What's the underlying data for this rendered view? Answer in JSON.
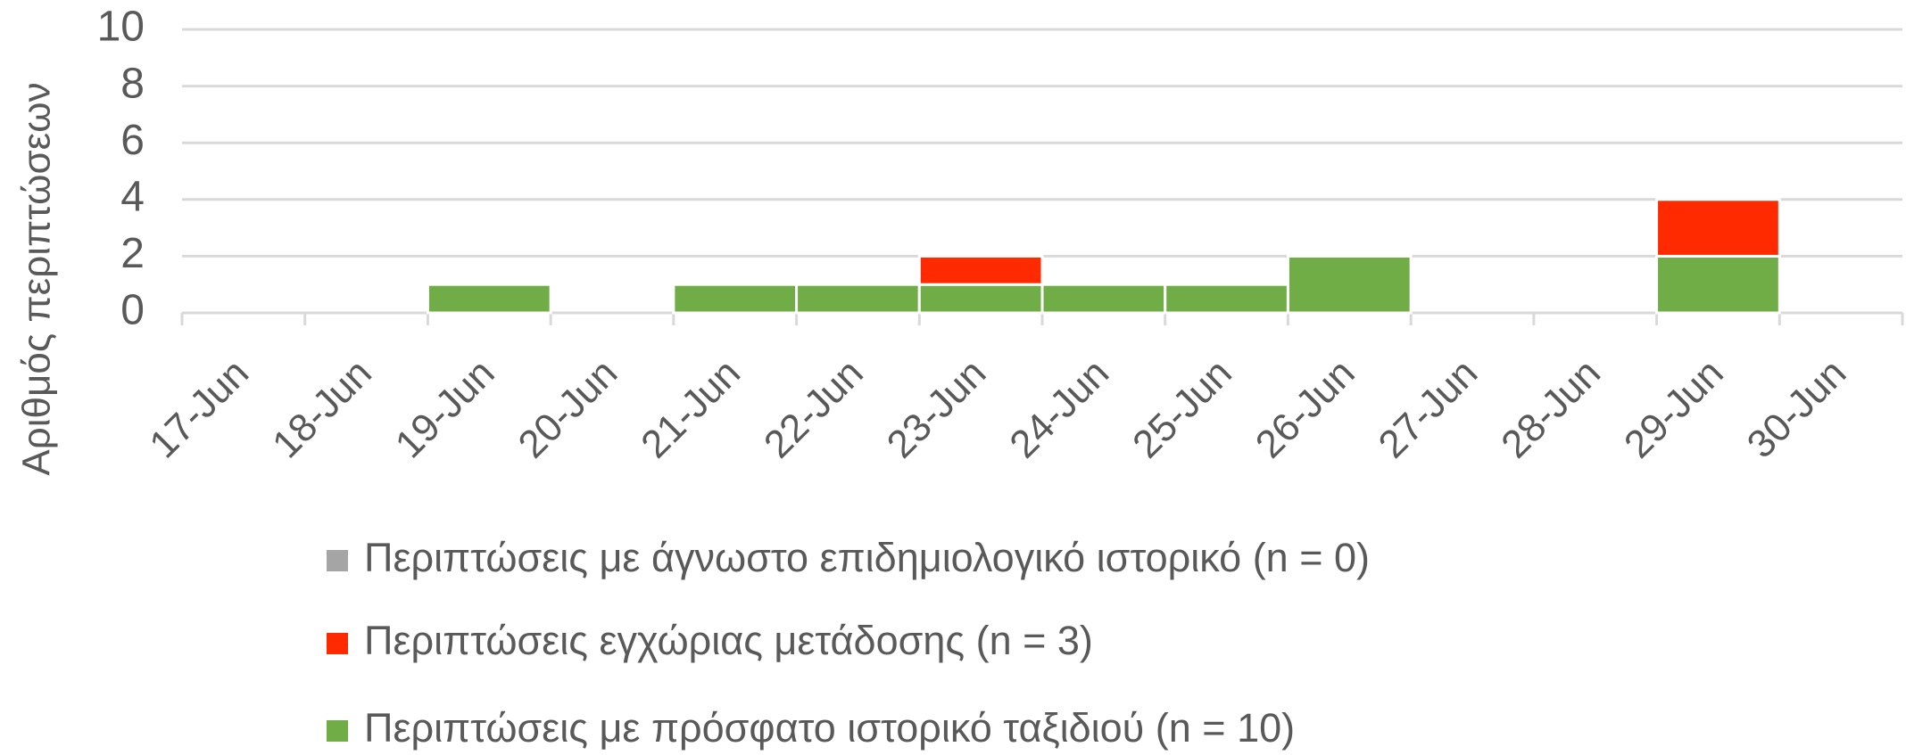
{
  "chart_data": {
    "type": "stacked_bar",
    "y_label": "Αριθμός περιπτώσεων",
    "categories": [
      "17-Jun",
      "18-Jun",
      "19-Jun",
      "20-Jun",
      "21-Jun",
      "22-Jun",
      "23-Jun",
      "24-Jun",
      "25-Jun",
      "26-Jun",
      "27-Jun",
      "28-Jun",
      "29-Jun",
      "30-Jun"
    ],
    "series": [
      {
        "name": "Περιπτώσεις με άγνωστο επιδημιολογικό ιστορικό (n = 0)",
        "color": "#a5a5a5",
        "values": [
          0,
          0,
          0,
          0,
          0,
          0,
          0,
          0,
          0,
          0,
          0,
          0,
          0,
          0
        ]
      },
      {
        "name": "Περιπτώσεις εγχώριας μετάδοσης (n = 3)",
        "color": "#ff2a00",
        "values": [
          0,
          0,
          0,
          0,
          0,
          0,
          1,
          0,
          0,
          0,
          0,
          0,
          2,
          0
        ]
      },
      {
        "name": "Περιπτώσεις με πρόσφατο ιστορικό ταξιδιού (n = 10)",
        "color": "#70ad47",
        "values": [
          0,
          0,
          1,
          0,
          1,
          1,
          1,
          1,
          1,
          2,
          0,
          0,
          2,
          0
        ]
      }
    ],
    "ylim": [
      0,
      10
    ],
    "yticks": [
      0,
      2,
      4,
      6,
      8,
      10
    ],
    "grid": true
  }
}
